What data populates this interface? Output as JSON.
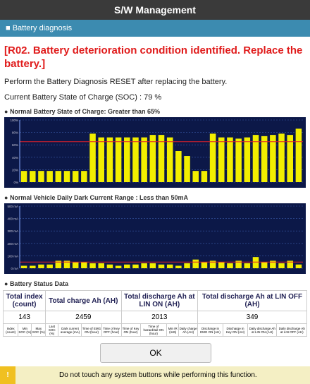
{
  "header": {
    "title": "S/W Management"
  },
  "section": {
    "title": "Battery diagnosis"
  },
  "message": {
    "alert": "[R02. Battery deterioration condition identified.  Replace the battery.]",
    "instruction": "Perform the Battery Diagnosis RESET after replacing the battery.",
    "soc": "Current Battery State of Charge (SOC) : 79 %"
  },
  "charts": [
    {
      "type": "bar",
      "title": "Normal Battery State of Charge: Greater than 65%",
      "ylim": [
        0,
        100
      ],
      "yticks": [
        {
          "value": 0,
          "label": "0%"
        },
        {
          "value": 20,
          "label": "20%"
        },
        {
          "value": 40,
          "label": "40%"
        },
        {
          "value": 60,
          "label": "60%"
        },
        {
          "value": 80,
          "label": "80%"
        },
        {
          "value": 100,
          "label": "100%"
        }
      ],
      "threshold": 65,
      "color": "#f2ee00",
      "threshold_color": "#e0202a",
      "values": [
        18,
        18,
        18,
        18,
        18,
        18,
        18,
        18,
        78,
        72,
        72,
        72,
        72,
        72,
        72,
        76,
        76,
        72,
        50,
        42,
        18,
        18,
        78,
        72,
        72,
        70,
        72,
        76,
        74,
        76,
        78,
        76,
        86
      ]
    },
    {
      "type": "bar",
      "title": "Normal Vehicle Daily Dark Current Range : Less than 50mA",
      "ylim": [
        0,
        500
      ],
      "yticks": [
        {
          "value": 0,
          "label": "0 mA"
        },
        {
          "value": 100,
          "label": "100 mA"
        },
        {
          "value": 200,
          "label": "200 mA"
        },
        {
          "value": 300,
          "label": "300 mA"
        },
        {
          "value": 400,
          "label": "400 mA"
        },
        {
          "value": 500,
          "label": "500 mA"
        }
      ],
      "threshold": 50,
      "color": "#f2ee00",
      "threshold_color": "#e0202a",
      "values": [
        20,
        20,
        30,
        30,
        60,
        60,
        50,
        50,
        40,
        40,
        30,
        20,
        30,
        30,
        40,
        40,
        30,
        30,
        20,
        40,
        70,
        50,
        60,
        50,
        40,
        60,
        40,
        90,
        50,
        60,
        40,
        60,
        30
      ]
    }
  ],
  "status": {
    "title": "Battery Status Data",
    "summary_headers": [
      "Total index (count)",
      "Total charge Ah (AH)",
      "Total discharge Ah at LIN ON (AH)",
      "Total discharge Ah at LIN OFF (AH)"
    ],
    "summary_values": [
      "143",
      "2459",
      "2013",
      "349"
    ],
    "columns": [
      "Index (count)",
      "Min SOC (%)",
      "Max SOC (%)",
      "Last SOC (%)",
      "Dark current average (mA)",
      "Time of EMG ON (hour)",
      "Time of Key OFF (hour)",
      "Time of Key ON (hour)",
      "Time of hazard/tail ON (hour)",
      "Min IR (mΩ)",
      "Daily charge Ah (AH)",
      "Discharge in EMG ON (AH)",
      "Discharge in Key ON (AH)",
      "Daily discharge Ah at LIN ON (AH)",
      "Daily discharge Ah at LIN OFF (AH)"
    ]
  },
  "button": "OK",
  "footer": {
    "icon": "!",
    "text": "Do not touch any system buttons while performing this function."
  }
}
